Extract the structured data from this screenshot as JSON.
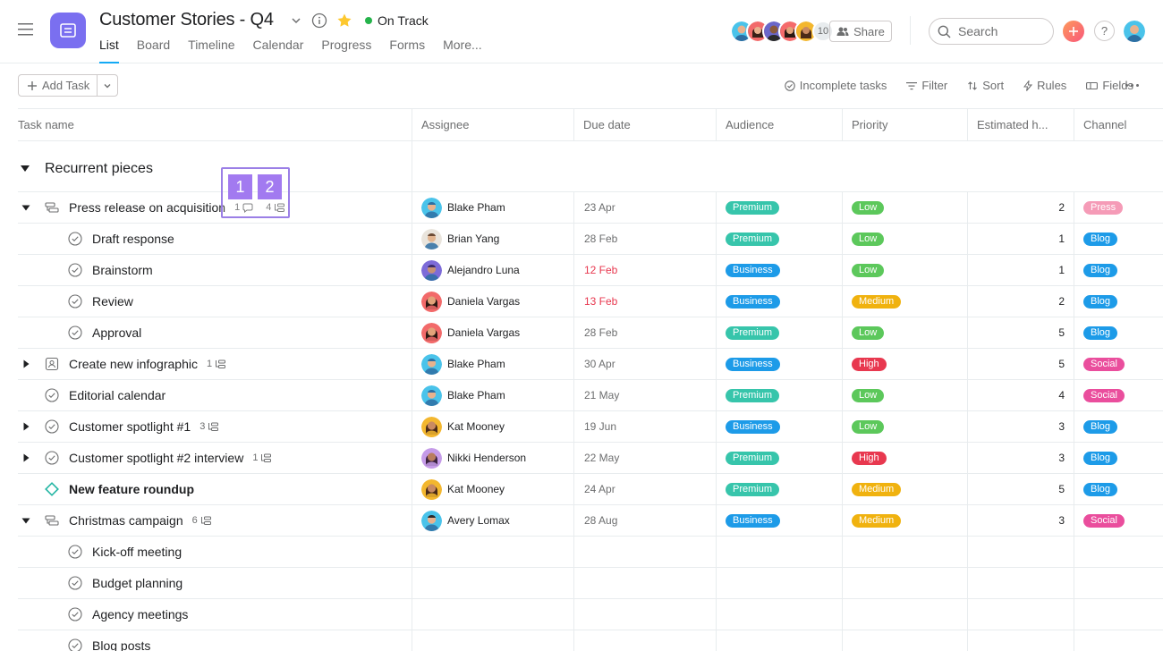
{
  "project": {
    "title": "Customer Stories - Q4",
    "status": "On Track"
  },
  "tabs": [
    "List",
    "Board",
    "Timeline",
    "Calendar",
    "Progress",
    "Forms",
    "More..."
  ],
  "members": {
    "count": "10"
  },
  "header": {
    "share_label": "Share",
    "search_placeholder": "Search",
    "help_label": "?"
  },
  "toolbar": {
    "add_task_label": "Add Task",
    "incomplete_label": "Incomplete tasks",
    "filter_label": "Filter",
    "sort_label": "Sort",
    "rules_label": "Rules",
    "fields_label": "Fields"
  },
  "columns": [
    "Task name",
    "Assignee",
    "Due date",
    "Audience",
    "Priority",
    "Estimated h...",
    "Channel"
  ],
  "section": {
    "name": "Recurrent pieces"
  },
  "overlay_badges": [
    "1",
    "2"
  ],
  "colors": {
    "Premium": "#37c5ab",
    "Business": "#1d9be8",
    "Low": "#5cc85b",
    "Medium": "#f0b20f",
    "High": "#e8384f",
    "Press": "#f59bb7",
    "Blog": "#1d9be8",
    "Social": "#ea4e9d",
    "accent": "#14aaf5",
    "status": "#25b34b"
  },
  "tasks": [
    {
      "name": "Press release on acquisition",
      "comments": "1",
      "subtasks": "4",
      "assignee": "Blake Pham",
      "due": "23 Apr",
      "audience": "Premium",
      "priority": "Low",
      "est": "2",
      "channel": "Press"
    },
    {
      "name": "Draft response",
      "assignee": "Brian Yang",
      "due": "28 Feb",
      "audience": "Premium",
      "priority": "Low",
      "est": "1",
      "channel": "Blog"
    },
    {
      "name": "Brainstorm",
      "assignee": "Alejandro Luna",
      "due": "12 Feb",
      "audience": "Business",
      "priority": "Low",
      "est": "1",
      "channel": "Blog"
    },
    {
      "name": "Review",
      "assignee": "Daniela Vargas",
      "due": "13 Feb",
      "audience": "Business",
      "priority": "Medium",
      "est": "2",
      "channel": "Blog"
    },
    {
      "name": "Approval",
      "assignee": "Daniela Vargas",
      "due": "28 Feb",
      "audience": "Premium",
      "priority": "Low",
      "est": "5",
      "channel": "Blog"
    },
    {
      "name": "Create new infographic",
      "subtasks": "1",
      "assignee": "Blake Pham",
      "due": "30 Apr",
      "audience": "Business",
      "priority": "High",
      "est": "5",
      "channel": "Social"
    },
    {
      "name": "Editorial calendar",
      "assignee": "Blake Pham",
      "due": "21 May",
      "audience": "Premium",
      "priority": "Low",
      "est": "4",
      "channel": "Social"
    },
    {
      "name": "Customer spotlight #1",
      "subtasks": "3",
      "assignee": "Kat Mooney",
      "due": "19 Jun",
      "audience": "Business",
      "priority": "Low",
      "est": "3",
      "channel": "Blog"
    },
    {
      "name": "Customer spotlight #2 interview",
      "subtasks": "1",
      "assignee": "Nikki Henderson",
      "due": "22 May",
      "audience": "Premium",
      "priority": "High",
      "est": "3",
      "channel": "Blog"
    },
    {
      "name": "New feature roundup",
      "assignee": "Kat Mooney",
      "due": "24 Apr",
      "audience": "Premium",
      "priority": "Medium",
      "est": "5",
      "channel": "Blog"
    },
    {
      "name": "Christmas campaign",
      "subtasks": "6",
      "assignee": "Avery Lomax",
      "due": "28 Aug",
      "audience": "Business",
      "priority": "Medium",
      "est": "3",
      "channel": "Social"
    },
    {
      "name": "Kick-off meeting"
    },
    {
      "name": "Budget planning"
    },
    {
      "name": "Agency meetings"
    },
    {
      "name": "Blog posts"
    }
  ]
}
